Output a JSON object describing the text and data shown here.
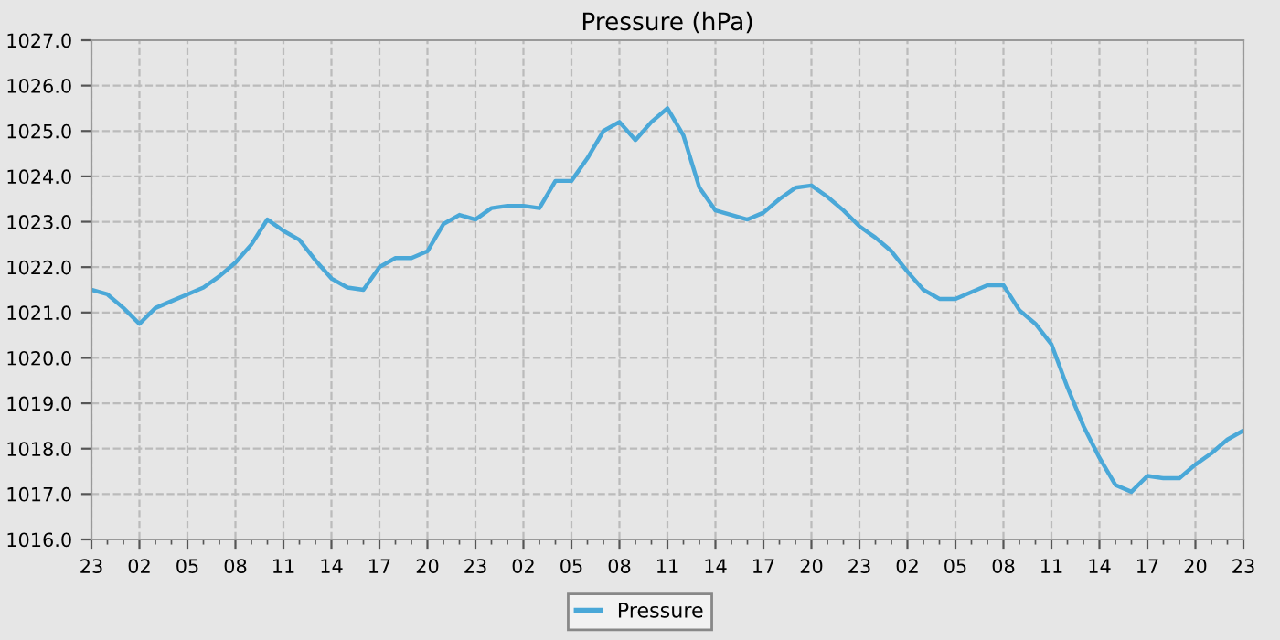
{
  "chart_data": {
    "type": "line",
    "title": "Pressure (hPa)",
    "categories": [
      "23",
      null,
      null,
      "02",
      null,
      null,
      "05",
      null,
      null,
      "08",
      null,
      null,
      "11",
      null,
      null,
      "14",
      null,
      null,
      "17",
      null,
      null,
      "20",
      null,
      null,
      "23",
      null,
      null,
      "02",
      null,
      null,
      "05",
      null,
      null,
      "08",
      null,
      null,
      "11",
      null,
      null,
      "14",
      null,
      null,
      "17",
      null,
      null,
      "20",
      null,
      null,
      "23",
      null,
      null,
      "02",
      null,
      null,
      "05",
      null,
      null,
      "08",
      null,
      null,
      "11",
      null,
      null,
      "14",
      null,
      null,
      "17",
      null,
      null,
      "20",
      null,
      null,
      "23"
    ],
    "series": [
      {
        "name": "Pressure",
        "color": "#4aa8d8",
        "values": [
          1021.5,
          1021.4,
          1021.1,
          1020.75,
          1021.1,
          1021.25,
          1021.4,
          1021.55,
          1021.8,
          1022.1,
          1022.5,
          1023.05,
          1022.8,
          1022.6,
          1022.15,
          1021.75,
          1021.55,
          1021.5,
          1022.0,
          1022.2,
          1022.2,
          1022.35,
          1022.95,
          1023.15,
          1023.05,
          1023.3,
          1023.35,
          1023.35,
          1023.3,
          1023.9,
          1023.9,
          1024.4,
          1025.0,
          1025.2,
          1024.8,
          1025.2,
          1025.5,
          1024.9,
          1023.75,
          1023.25,
          1023.15,
          1023.05,
          1023.2,
          1023.5,
          1023.75,
          1023.8,
          1023.55,
          1023.25,
          1022.9,
          1022.65,
          1022.35,
          1021.9,
          1021.5,
          1021.3,
          1021.3,
          1021.45,
          1021.6,
          1021.6,
          1021.05,
          1020.75,
          1020.3,
          1019.35,
          1018.5,
          1017.8,
          1017.2,
          1017.05,
          1017.4,
          1017.35,
          1017.35,
          1017.65,
          1017.9,
          1018.2,
          1018.4
        ]
      }
    ],
    "ylim": [
      1016,
      1027
    ],
    "yticks": [
      {
        "value": 1016,
        "label": "1016.0"
      },
      {
        "value": 1017,
        "label": "1017.0"
      },
      {
        "value": 1018,
        "label": "1018.0"
      },
      {
        "value": 1019,
        "label": "1019.0"
      },
      {
        "value": 1020,
        "label": "1020.0"
      },
      {
        "value": 1021,
        "label": "1021.0"
      },
      {
        "value": 1022,
        "label": "1022.0"
      },
      {
        "value": 1023,
        "label": "1023.0"
      },
      {
        "value": 1024,
        "label": "1024.0"
      },
      {
        "value": 1025,
        "label": "1025.0"
      },
      {
        "value": 1026,
        "label": "1026.0"
      },
      {
        "value": 1027,
        "label": "1027.0"
      }
    ],
    "grid": true,
    "legend": "bottom",
    "line_style": "solid",
    "marker": "none"
  }
}
